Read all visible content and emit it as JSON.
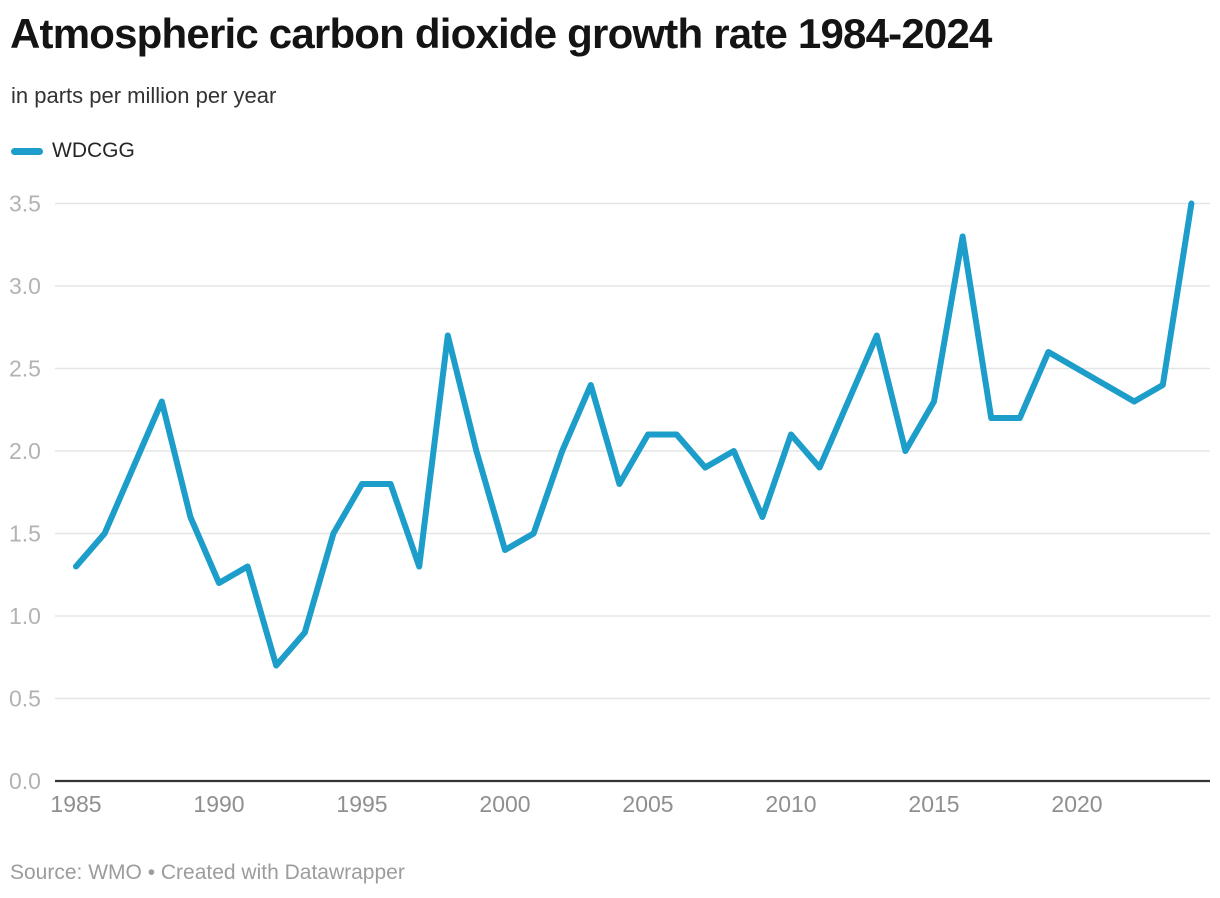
{
  "header": {
    "title": "Atmospheric carbon dioxide growth rate 1984-2024",
    "subtitle": "in parts per million per year"
  },
  "legend": {
    "label": "WDCGG"
  },
  "footer": {
    "source": "Source: WMO • Created with Datawrapper"
  },
  "colors": {
    "accent": "#1d9dc9",
    "grid": "#e5e5e5",
    "axis_baseline": "#333333",
    "y_tick_text": "#b3b3b3",
    "x_tick_text": "#8f8f8f",
    "title_text": "#141414",
    "source_text": "#9c9c9c"
  },
  "chart_data": {
    "type": "line",
    "title": "Atmospheric carbon dioxide growth rate 1984-2024",
    "units": "parts per million per year",
    "xlabel": "",
    "ylabel": "",
    "xlim": [
      1985,
      2024
    ],
    "ylim": [
      0,
      3.5
    ],
    "grid": "horizontal",
    "legend_position": "top-left",
    "x_ticks": [
      "1985",
      "1990",
      "1995",
      "2000",
      "2005",
      "2010",
      "2015",
      "2020"
    ],
    "y_ticks": [
      "0.0",
      "0.5",
      "1.0",
      "1.5",
      "2.0",
      "2.5",
      "3.0",
      "3.5"
    ],
    "x": [
      1985,
      1986,
      1987,
      1988,
      1989,
      1990,
      1991,
      1992,
      1993,
      1994,
      1995,
      1996,
      1997,
      1998,
      1999,
      2000,
      2001,
      2002,
      2003,
      2004,
      2005,
      2006,
      2007,
      2008,
      2009,
      2010,
      2011,
      2012,
      2013,
      2014,
      2015,
      2016,
      2017,
      2018,
      2019,
      2020,
      2021,
      2022,
      2023,
      2024
    ],
    "series": [
      {
        "name": "WDCGG",
        "color": "#1d9dc9",
        "values": [
          1.3,
          1.5,
          1.9,
          2.3,
          1.6,
          1.2,
          1.3,
          0.7,
          0.9,
          1.5,
          1.8,
          1.8,
          1.3,
          2.7,
          2.0,
          1.4,
          1.5,
          2.0,
          2.4,
          1.8,
          2.1,
          2.1,
          1.9,
          2.0,
          1.6,
          2.1,
          1.9,
          2.3,
          2.7,
          2.0,
          2.3,
          3.3,
          2.2,
          2.2,
          2.6,
          2.5,
          2.4,
          2.3,
          2.4,
          3.5
        ]
      }
    ]
  }
}
